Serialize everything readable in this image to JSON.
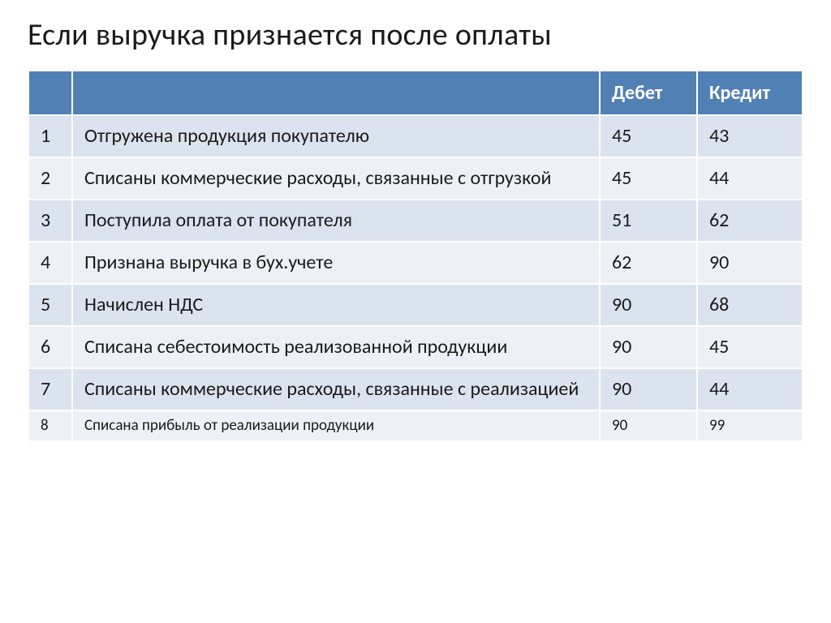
{
  "title": "Если выручка признается после оплаты",
  "table": {
    "columns": [
      "",
      "",
      "Дебет",
      "Кредит"
    ],
    "rows": [
      {
        "num": "1",
        "desc": "Отгружена продукция покупателю",
        "debit": "45",
        "credit": "43",
        "size": "normal"
      },
      {
        "num": "2",
        "desc": "Списаны коммерческие расходы, связанные с отгрузкой",
        "debit": "45",
        "credit": "44",
        "size": "normal"
      },
      {
        "num": "3",
        "desc": "Поступила оплата  от покупателя",
        "debit": "51",
        "credit": "62",
        "size": "normal"
      },
      {
        "num": "4",
        "desc": "Признана выручка в бух.учете",
        "debit": "62",
        "credit": "90",
        "size": "normal"
      },
      {
        "num": "5",
        "desc": "Начислен НДС",
        "debit": "90",
        "credit": "68",
        "size": "normal"
      },
      {
        "num": "6",
        "desc": "Списана себестоимость реализованной продукции",
        "debit": "90",
        "credit": "45",
        "size": "normal"
      },
      {
        "num": "7",
        "desc": "Списаны коммерческие расходы, связанные  с реализацией",
        "debit": "90",
        "credit": "44",
        "size": "normal"
      },
      {
        "num": "8",
        "desc": "Списана прибыль от реализации продукции",
        "debit": "90",
        "credit": "99",
        "size": "small"
      }
    ],
    "header_bg": "#5180b5",
    "header_text": "#ffffff",
    "row_odd_bg": "#dbe3ef",
    "row_even_bg": "#edf1f7",
    "cell_text": "#1a1a1a",
    "normal_fontsize": 24,
    "small_fontsize": 19,
    "title_fontsize": 38
  }
}
